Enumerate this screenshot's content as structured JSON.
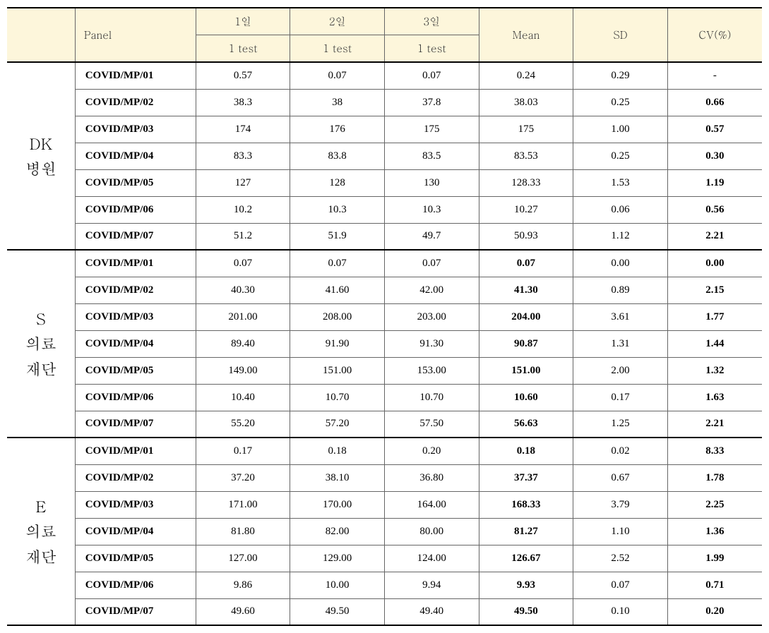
{
  "header": {
    "panel": "Panel",
    "day1": "1일",
    "day2": "2일",
    "day3": "3일",
    "sub1": "1 test",
    "sub2": "1 test",
    "sub3": "1 test",
    "mean": "Mean",
    "sd": "SD",
    "cv": "CV(%)"
  },
  "groups": [
    {
      "label": "DK\n병원",
      "rows": [
        {
          "panel": "COVID/MP/01",
          "d1": "0.57",
          "d2": "0.07",
          "d3": "0.07",
          "mean": "0.24",
          "sd": "0.29",
          "cv": "-",
          "meanBold": false,
          "cvBold": false
        },
        {
          "panel": "COVID/MP/02",
          "d1": "38.3",
          "d2": "38",
          "d3": "37.8",
          "mean": "38.03",
          "sd": "0.25",
          "cv": "0.66",
          "meanBold": false,
          "cvBold": true
        },
        {
          "panel": "COVID/MP/03",
          "d1": "174",
          "d2": "176",
          "d3": "175",
          "mean": "175",
          "sd": "1.00",
          "cv": "0.57",
          "meanBold": false,
          "cvBold": true
        },
        {
          "panel": "COVID/MP/04",
          "d1": "83.3",
          "d2": "83.8",
          "d3": "83.5",
          "mean": "83.53",
          "sd": "0.25",
          "cv": "0.30",
          "meanBold": false,
          "cvBold": true
        },
        {
          "panel": "COVID/MP/05",
          "d1": "127",
          "d2": "128",
          "d3": "130",
          "mean": "128.33",
          "sd": "1.53",
          "cv": "1.19",
          "meanBold": false,
          "cvBold": true
        },
        {
          "panel": "COVID/MP/06",
          "d1": "10.2",
          "d2": "10.3",
          "d3": "10.3",
          "mean": "10.27",
          "sd": "0.06",
          "cv": "0.56",
          "meanBold": false,
          "cvBold": true
        },
        {
          "panel": "COVID/MP/07",
          "d1": "51.2",
          "d2": "51.9",
          "d3": "49.7",
          "mean": "50.93",
          "sd": "1.12",
          "cv": "2.21",
          "meanBold": false,
          "cvBold": true
        }
      ]
    },
    {
      "label": "S\n의료\n재단",
      "rows": [
        {
          "panel": "COVID/MP/01",
          "d1": "0.07",
          "d2": "0.07",
          "d3": "0.07",
          "mean": "0.07",
          "sd": "0.00",
          "cv": "0.00",
          "meanBold": true,
          "cvBold": true
        },
        {
          "panel": "COVID/MP/02",
          "d1": "40.30",
          "d2": "41.60",
          "d3": "42.00",
          "mean": "41.30",
          "sd": "0.89",
          "cv": "2.15",
          "meanBold": true,
          "cvBold": true
        },
        {
          "panel": "COVID/MP/03",
          "d1": "201.00",
          "d2": "208.00",
          "d3": "203.00",
          "mean": "204.00",
          "sd": "3.61",
          "cv": "1.77",
          "meanBold": true,
          "cvBold": true
        },
        {
          "panel": "COVID/MP/04",
          "d1": "89.40",
          "d2": "91.90",
          "d3": "91.30",
          "mean": "90.87",
          "sd": "1.31",
          "cv": "1.44",
          "meanBold": true,
          "cvBold": true
        },
        {
          "panel": "COVID/MP/05",
          "d1": "149.00",
          "d2": "151.00",
          "d3": "153.00",
          "mean": "151.00",
          "sd": "2.00",
          "cv": "1.32",
          "meanBold": true,
          "cvBold": true
        },
        {
          "panel": "COVID/MP/06",
          "d1": "10.40",
          "d2": "10.70",
          "d3": "10.70",
          "mean": "10.60",
          "sd": "0.17",
          "cv": "1.63",
          "meanBold": true,
          "cvBold": true
        },
        {
          "panel": "COVID/MP/07",
          "d1": "55.20",
          "d2": "57.20",
          "d3": "57.50",
          "mean": "56.63",
          "sd": "1.25",
          "cv": "2.21",
          "meanBold": true,
          "cvBold": true
        }
      ]
    },
    {
      "label": "E\n의료\n재단",
      "rows": [
        {
          "panel": "COVID/MP/01",
          "d1": "0.17",
          "d2": "0.18",
          "d3": "0.20",
          "mean": "0.18",
          "sd": "0.02",
          "cv": "8.33",
          "meanBold": true,
          "cvBold": true
        },
        {
          "panel": "COVID/MP/02",
          "d1": "37.20",
          "d2": "38.10",
          "d3": "36.80",
          "mean": "37.37",
          "sd": "0.67",
          "cv": "1.78",
          "meanBold": true,
          "cvBold": true
        },
        {
          "panel": "COVID/MP/03",
          "d1": "171.00",
          "d2": "170.00",
          "d3": "164.00",
          "mean": "168.33",
          "sd": "3.79",
          "cv": "2.25",
          "meanBold": true,
          "cvBold": true
        },
        {
          "panel": "COVID/MP/04",
          "d1": "81.80",
          "d2": "82.00",
          "d3": "80.00",
          "mean": "81.27",
          "sd": "1.10",
          "cv": "1.36",
          "meanBold": true,
          "cvBold": true
        },
        {
          "panel": "COVID/MP/05",
          "d1": "127.00",
          "d2": "129.00",
          "d3": "124.00",
          "mean": "126.67",
          "sd": "2.52",
          "cv": "1.99",
          "meanBold": true,
          "cvBold": true
        },
        {
          "panel": "COVID/MP/06",
          "d1": "9.86",
          "d2": "10.00",
          "d3": "9.94",
          "mean": "9.93",
          "sd": "0.07",
          "cv": "0.71",
          "meanBold": true,
          "cvBold": true
        },
        {
          "panel": "COVID/MP/07",
          "d1": "49.60",
          "d2": "49.50",
          "d3": "49.40",
          "mean": "49.50",
          "sd": "0.10",
          "cv": "0.20",
          "meanBold": true,
          "cvBold": true
        }
      ]
    }
  ],
  "styling": {
    "header_bg": "#fdf6db",
    "border_color": "#666666",
    "thick_border_color": "#000000",
    "font_body": "Times New Roman, serif",
    "font_group": "Batang, serif"
  }
}
